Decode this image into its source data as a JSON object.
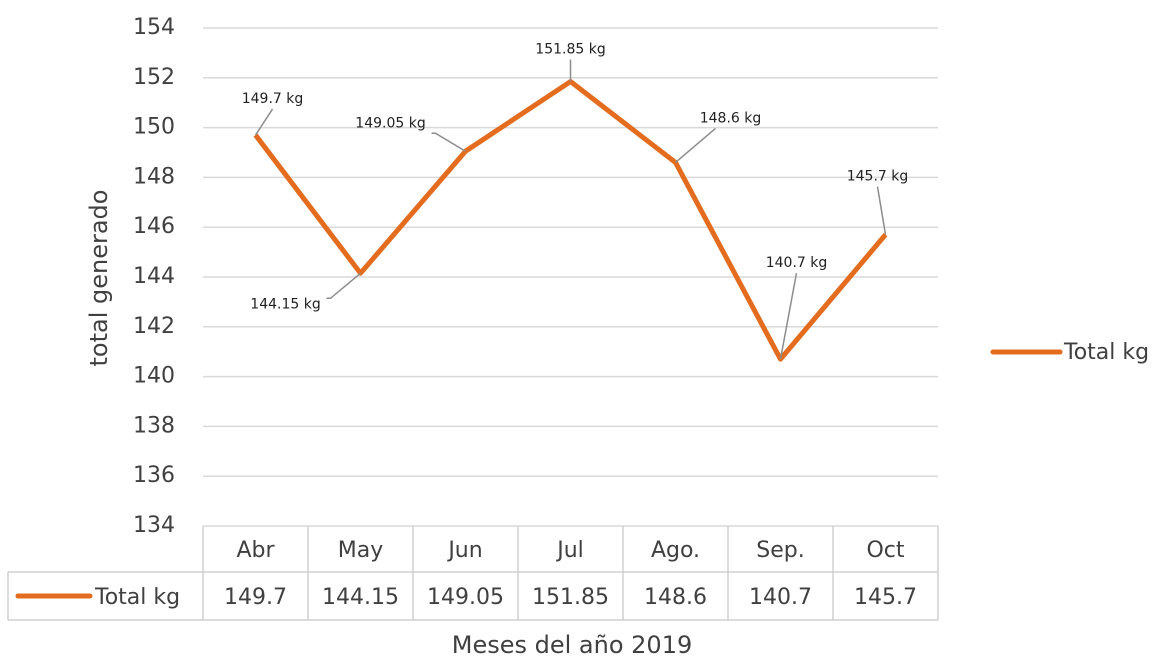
{
  "chart_data": {
    "type": "line",
    "y_label": "total generado",
    "x_label": "Meses del año 2019",
    "categories": [
      "Abr",
      "May",
      "Jun",
      "Jul",
      "Ago.",
      "Sep.",
      "Oct"
    ],
    "series": [
      {
        "name": "Total kg",
        "color": "#e36c1e",
        "values": [
          149.7,
          144.15,
          149.05,
          151.85,
          148.6,
          140.7,
          145.7
        ],
        "value_labels": [
          "149.7 kg",
          "144.15 kg",
          "149.05 kg",
          "151.85 kg",
          "148.6 kg",
          "140.7 kg",
          "145.7 kg"
        ]
      }
    ],
    "ylim": [
      134,
      154
    ],
    "yticks": [
      134,
      136,
      138,
      140,
      142,
      144,
      146,
      148,
      150,
      152,
      154
    ],
    "grid": true,
    "legend": "right",
    "data_table": true
  }
}
